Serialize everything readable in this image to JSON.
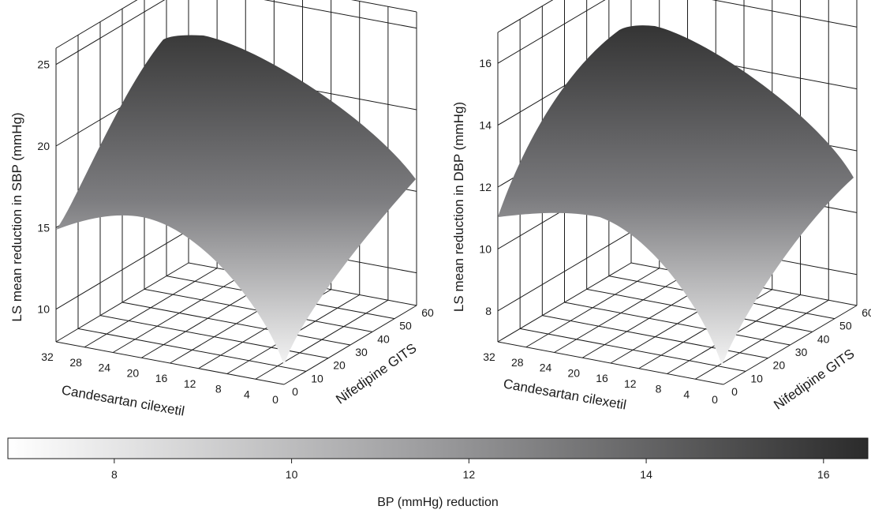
{
  "chart_data": [
    {
      "type": "surface",
      "zlabel": "LS mean reduction in SBP (mmHg)",
      "xlabel": "Candesartan cilexetil",
      "ylabel": "Nifedipine GITS",
      "x_ticks": [
        "32",
        "28",
        "24",
        "20",
        "16",
        "12",
        "8",
        "4",
        "0"
      ],
      "y_ticks": [
        "0",
        "10",
        "20",
        "30",
        "40",
        "50",
        "60"
      ],
      "z_ticks": [
        "10",
        "15",
        "20",
        "25"
      ],
      "x_range": [
        0,
        32
      ],
      "y_range": [
        0,
        60
      ],
      "zlim": [
        8,
        26
      ],
      "corner_values": {
        "x0_y0": 5.5,
        "x32_y0": 15.0,
        "x0_y60": 18.3,
        "x32_y60": 19.5
      },
      "peak_value": 25.5
    },
    {
      "type": "surface",
      "zlabel": "LS mean reduction in DBP (mmHg)",
      "xlabel": "Candesartan cilexetil",
      "ylabel": "Nifedipine GITS",
      "x_ticks": [
        "32",
        "28",
        "24",
        "20",
        "16",
        "12",
        "8",
        "4",
        "0"
      ],
      "y_ticks": [
        "0",
        "10",
        "20",
        "30",
        "40",
        "50",
        "60"
      ],
      "z_ticks": [
        "8",
        "10",
        "12",
        "14",
        "16"
      ],
      "x_range": [
        0,
        32
      ],
      "y_range": [
        0,
        60
      ],
      "zlim": [
        7,
        17
      ],
      "corner_values": {
        "x0_y0": 4.0,
        "x32_y0": 11.8,
        "x0_y60": 12.9,
        "x32_y60": 13.4
      },
      "peak_value": 17.0
    }
  ],
  "colorbar": {
    "label": "BP (mmHg) reduction",
    "ticks": [
      "8",
      "10",
      "12",
      "14",
      "16"
    ],
    "range": [
      6.8,
      16.5
    ],
    "colors": {
      "low": "#ffffff",
      "high": "#2b2b2b"
    }
  }
}
